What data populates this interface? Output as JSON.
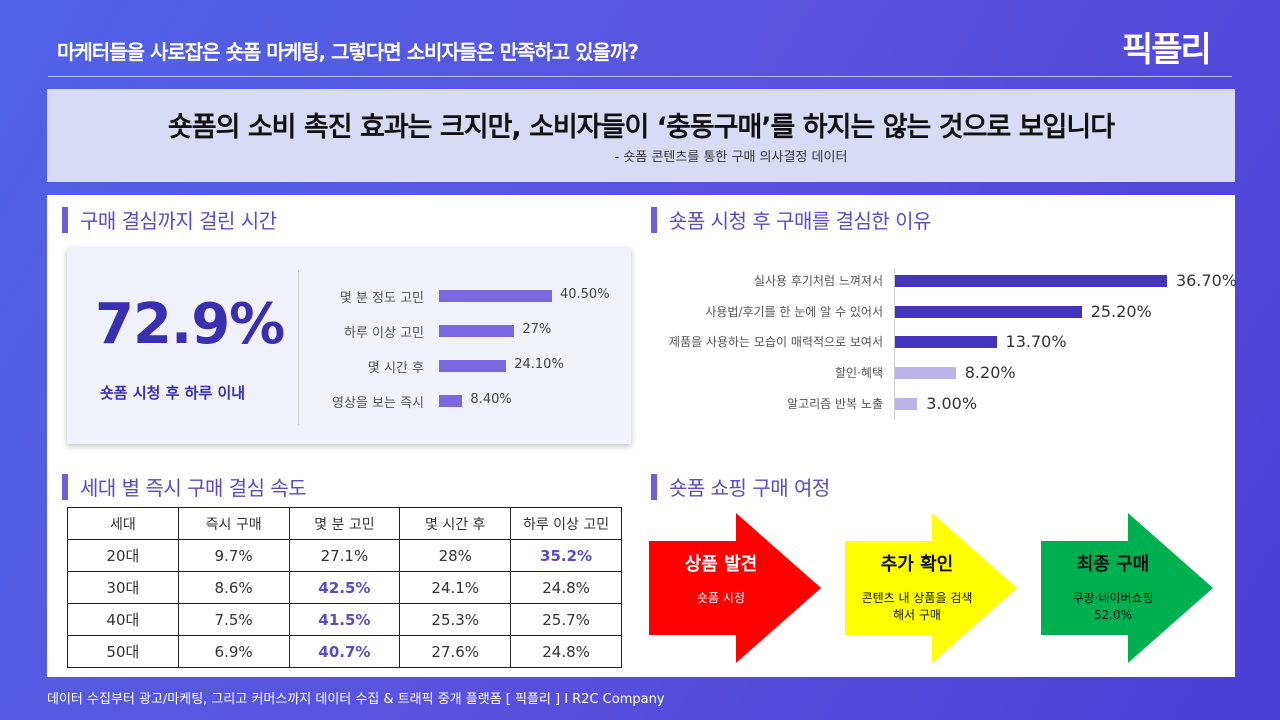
{
  "header": {
    "title": "마케터들을 사로잡은 숏폼 마케팅, 그렇다면 소비자들은 만족하고 있을까?",
    "logo": "픽플리"
  },
  "banner": {
    "headline": "숏폼의 소비 촉진 효과는 크지만, 소비자들이 ‘충동구매’를 하지는 않는 것으로 보입니다",
    "source": "- 숏폼 콘텐츠를 통한 구매 의사결정 데이터"
  },
  "decision_time": {
    "heading": "구매 결심까지 걸린 시간",
    "big_value": "72.9%",
    "big_label": "숏폼 시청 후 하루 이내",
    "chart_data": {
      "type": "bar",
      "orientation": "horizontal",
      "categories": [
        "몇 분 정도 고민",
        "하루 이상 고민",
        "몇 시간 후",
        "영상을 보는 즉시"
      ],
      "values": [
        40.5,
        27,
        24.1,
        8.4
      ],
      "labels": [
        "40.50%",
        "27%",
        "24.10%",
        "8.40%"
      ],
      "color": "#7b68e0"
    }
  },
  "reasons": {
    "heading": "숏폼 시청 후 구매를 결심한 이유",
    "chart_data": {
      "type": "bar",
      "orientation": "horizontal",
      "categories": [
        "실사용 후기처럼 느껴져서",
        "사용법/후기를 한 눈에 알 수 있어서",
        "제품을 사용하는 모습이 매력적으로 보여서",
        "할인·혜택",
        "알고리즘 반복 노출"
      ],
      "values": [
        36.7,
        25.2,
        13.7,
        8.2,
        3.0
      ],
      "labels": [
        "36.70%",
        "25.20%",
        "13.70%",
        "8.20%",
        "3.00%"
      ],
      "colors": [
        "#4433bb",
        "#4433bb",
        "#4433bb",
        "#bcb4e8",
        "#bcb4e8"
      ]
    }
  },
  "generation": {
    "heading": "세대 별 즉시 구매 결심 속도",
    "columns": [
      "세대",
      "즉시 구매",
      "몇 분 고민",
      "몇 시간 후",
      "하루 이상 고민"
    ],
    "rows": [
      [
        "20대",
        "9.7%",
        "27.1%",
        "28%",
        "35.2%"
      ],
      [
        "30대",
        "8.6%",
        "42.5%",
        "24.1%",
        "24.8%"
      ],
      [
        "40대",
        "7.5%",
        "41.5%",
        "25.3%",
        "25.7%"
      ],
      [
        "50대",
        "6.9%",
        "40.7%",
        "27.6%",
        "24.8%"
      ]
    ],
    "highlights": [
      [
        0,
        4
      ],
      [
        1,
        2
      ],
      [
        2,
        2
      ],
      [
        3,
        2
      ]
    ]
  },
  "journey": {
    "heading": "숏폼 쇼핑 구매 여정",
    "steps": [
      {
        "title": "상품 발견",
        "desc": "숏폼 시청",
        "color": "#ff0000",
        "text_color": "#ffffff"
      },
      {
        "title": "추가 확인",
        "desc": "콘텐츠 내 상품을 검색해서 구매",
        "color": "#ffff00",
        "text_color": "#111111"
      },
      {
        "title": "최종 구매",
        "desc": "쿠팡·네이버쇼핑 52.0%",
        "color": "#00b050",
        "text_color": "#111111"
      }
    ]
  },
  "footer": "데이터 수집부터 광고/마케팅, 그리고 커머스까지 데이터 수집 & 트래픽 중개 플랫폼 [ 픽플리 ]  I  R2C Company"
}
